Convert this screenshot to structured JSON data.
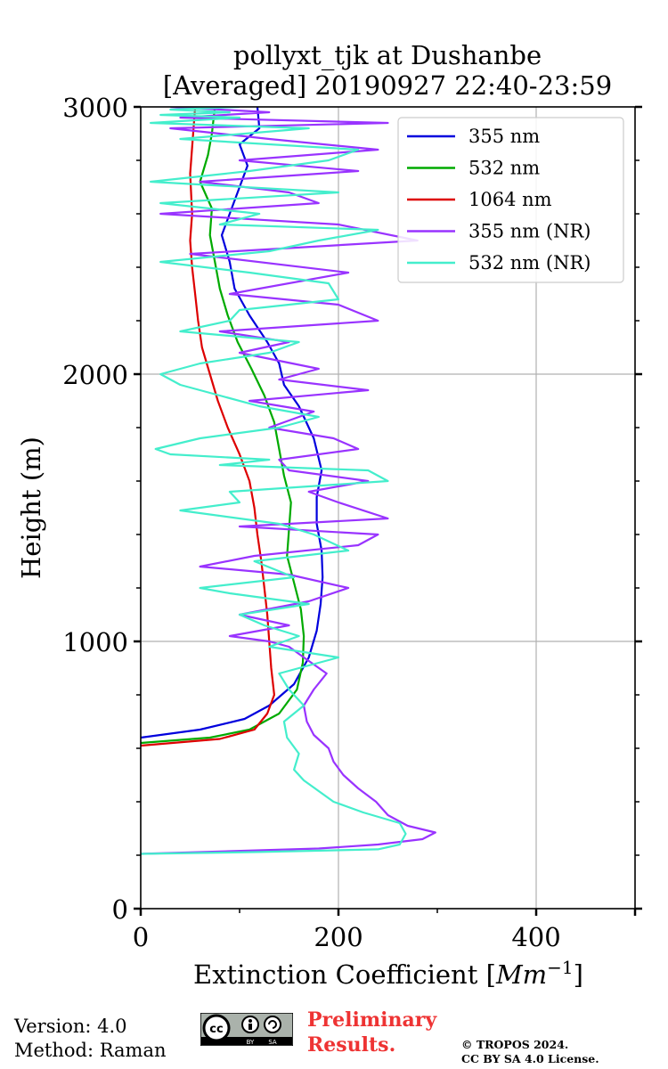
{
  "chart_data": {
    "type": "line",
    "title": "pollyxt_tjk at Dushanbe",
    "subtitle": "[Averaged] 20190927 22:40-23:59",
    "xlabel": "Extinction Coefficient",
    "xlabel_unit": "Mm",
    "xlabel_unit_exp": "−1",
    "ylabel": "Height (m)",
    "xlim": [
      0,
      500
    ],
    "ylim": [
      0,
      3000
    ],
    "xticks": [
      0,
      200,
      400
    ],
    "yticks": [
      0,
      1000,
      2000,
      3000
    ],
    "grid": true,
    "legend_position": "top-right",
    "series": [
      {
        "name": "355 nm",
        "color": "#0000dd",
        "x": [
          0,
          60,
          105,
          130,
          155,
          170,
          178,
          182,
          184,
          183,
          178,
          178,
          183,
          175,
          160,
          145,
          140,
          128,
          110,
          95,
          90,
          82,
          92,
          100,
          108,
          100,
          120,
          118
        ],
        "y": [
          640,
          670,
          710,
          760,
          840,
          940,
          1040,
          1140,
          1240,
          1340,
          1440,
          1540,
          1640,
          1760,
          1880,
          1960,
          2040,
          2120,
          2220,
          2320,
          2420,
          2520,
          2620,
          2700,
          2780,
          2860,
          2920,
          3000
        ]
      },
      {
        "name": "532 nm",
        "color": "#00aa00",
        "x": [
          0,
          70,
          110,
          140,
          158,
          164,
          165,
          162,
          155,
          148,
          150,
          152,
          145,
          140,
          135,
          125,
          112,
          98,
          88,
          80,
          75,
          70,
          72,
          60,
          68,
          72,
          75
        ],
        "y": [
          620,
          640,
          670,
          730,
          820,
          920,
          1020,
          1120,
          1220,
          1320,
          1420,
          1520,
          1620,
          1720,
          1820,
          1920,
          2020,
          2120,
          2220,
          2320,
          2420,
          2520,
          2620,
          2720,
          2820,
          2900,
          3000
        ]
      },
      {
        "name": "1064 nm",
        "color": "#dd0000",
        "x": [
          0,
          80,
          115,
          128,
          135,
          132,
          130,
          128,
          125,
          122,
          118,
          115,
          110,
          100,
          88,
          78,
          70,
          62,
          58,
          55,
          52,
          50,
          52,
          50,
          55
        ],
        "y": [
          610,
          635,
          670,
          730,
          800,
          900,
          1000,
          1100,
          1200,
          1300,
          1400,
          1500,
          1600,
          1700,
          1800,
          1900,
          2000,
          2100,
          2200,
          2300,
          2400,
          2500,
          2600,
          2750,
          3000
        ]
      },
      {
        "name": "355 nm (NR)",
        "color": "#9933ff",
        "x": [
          0,
          90,
          180,
          240,
          285,
          298,
          270,
          250,
          238,
          220,
          205,
          195,
          190,
          175,
          168,
          165,
          175,
          188,
          165,
          150,
          130,
          90,
          150,
          100,
          170,
          210,
          150,
          60,
          115,
          220,
          240,
          100,
          250,
          200,
          170,
          230,
          150,
          140,
          220,
          195,
          130,
          175,
          110,
          230,
          140,
          180,
          100,
          150,
          80,
          240,
          200,
          90,
          210,
          50,
          280,
          200,
          20,
          180,
          150,
          60,
          220,
          100,
          240,
          130,
          80,
          30,
          250,
          40,
          130,
          30
        ],
        "y": [
          205,
          215,
          225,
          240,
          260,
          285,
          310,
          350,
          400,
          450,
          500,
          550,
          600,
          650,
          700,
          760,
          820,
          880,
          940,
          980,
          1000,
          1020,
          1060,
          1100,
          1150,
          1200,
          1250,
          1280,
          1320,
          1360,
          1400,
          1430,
          1460,
          1520,
          1560,
          1600,
          1640,
          1680,
          1720,
          1760,
          1800,
          1860,
          1900,
          1940,
          1980,
          2020,
          2080,
          2120,
          2160,
          2200,
          2260,
          2300,
          2380,
          2450,
          2500,
          2560,
          2600,
          2640,
          2680,
          2720,
          2760,
          2800,
          2840,
          2880,
          2900,
          2920,
          2940,
          2960,
          2980,
          3000
        ]
      },
      {
        "name": "532 nm (NR)",
        "color": "#44eecc",
        "x": [
          0,
          120,
          240,
          262,
          268,
          262,
          225,
          195,
          180,
          165,
          155,
          160,
          148,
          145,
          165,
          150,
          140,
          200,
          130,
          160,
          125,
          100,
          170,
          90,
          60,
          155,
          115,
          210,
          175,
          140,
          40,
          100,
          90,
          250,
          230,
          80,
          130,
          30,
          15,
          60,
          140,
          180,
          120,
          80,
          40,
          20,
          60,
          130,
          160,
          40,
          90,
          100,
          200,
          190,
          110,
          20,
          130,
          180,
          240,
          80,
          120,
          20,
          200,
          10,
          110,
          190,
          220,
          40,
          170,
          10,
          100,
          20,
          90,
          30,
          100
        ],
        "y": [
          205,
          212,
          222,
          240,
          280,
          320,
          360,
          400,
          440,
          480,
          520,
          580,
          640,
          700,
          760,
          820,
          880,
          940,
          980,
          1020,
          1060,
          1100,
          1140,
          1180,
          1200,
          1240,
          1300,
          1340,
          1400,
          1440,
          1490,
          1520,
          1560,
          1600,
          1640,
          1660,
          1680,
          1700,
          1720,
          1760,
          1800,
          1840,
          1880,
          1920,
          1960,
          2000,
          2040,
          2080,
          2120,
          2160,
          2200,
          2240,
          2280,
          2340,
          2380,
          2420,
          2460,
          2500,
          2540,
          2560,
          2600,
          2640,
          2680,
          2720,
          2760,
          2800,
          2840,
          2880,
          2920,
          2940,
          2960,
          2970,
          2980,
          2990,
          3000
        ]
      }
    ]
  },
  "footer": {
    "version": "Version: 4.0",
    "method": "Method: Raman",
    "preliminary_line1": "Preliminary",
    "preliminary_line2": "Results.",
    "copyright_line1": "© TROPOS 2024.",
    "copyright_line2": "CC BY SA 4.0 License.",
    "cc_label": "cc",
    "by_label": "BY",
    "sa_label": "SA"
  }
}
